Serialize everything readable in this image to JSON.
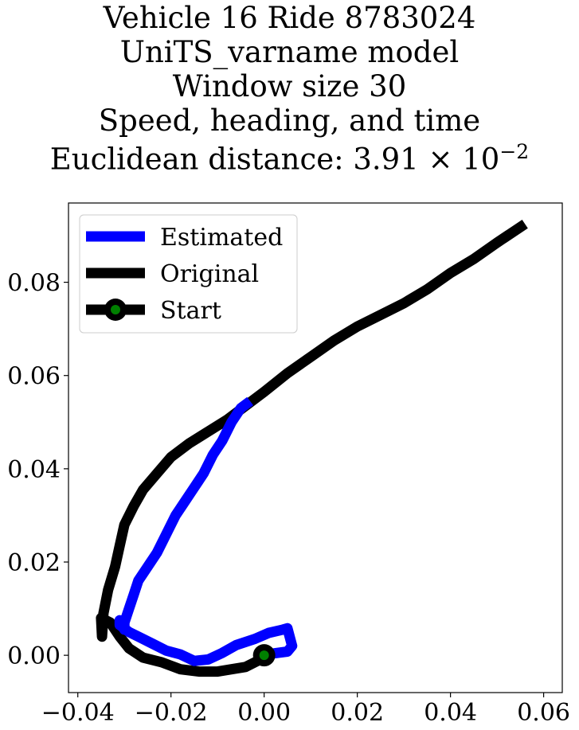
{
  "title_lines": [
    "Vehicle 16 Ride 8783024",
    "UniTS_varname model",
    "Window size 30",
    "Speed, heading, and time",
    "Euclidean distance: 3.91 × 10",
    "−2"
  ],
  "chart_data": {
    "type": "line",
    "title": "Vehicle 16 Ride 8783024\nUniTS_varname model\nWindow size 30\nSpeed, heading, and time\nEuclidean distance: 3.91 × 10^-2",
    "xlabel": "",
    "ylabel": "",
    "xlim": [
      -0.042,
      0.064
    ],
    "ylim": [
      -0.008,
      0.097
    ],
    "xticks": [
      -0.04,
      -0.02,
      0.0,
      0.02,
      0.04,
      0.06
    ],
    "xtick_labels": [
      "−0.04",
      "−0.02",
      "0.00",
      "0.02",
      "0.04",
      "0.06"
    ],
    "yticks": [
      0.0,
      0.02,
      0.04,
      0.06,
      0.08
    ],
    "ytick_labels": [
      "0.00",
      "0.02",
      "0.04",
      "0.06",
      "0.08"
    ],
    "grid": false,
    "legend_position": "upper-left",
    "series": [
      {
        "name": "Estimated",
        "color": "#0000ff",
        "x": [
          -0.003,
          -0.005,
          -0.007,
          -0.009,
          -0.011,
          -0.013,
          -0.015,
          -0.017,
          -0.019,
          -0.021,
          -0.023,
          -0.025,
          -0.027,
          -0.028,
          -0.029,
          -0.03,
          -0.03,
          -0.031,
          -0.031,
          -0.029,
          -0.027,
          -0.024,
          -0.021,
          -0.018,
          -0.015,
          -0.012,
          -0.009,
          -0.006,
          -0.002,
          0.001,
          0.004,
          0.005,
          0.006,
          0.005,
          0.002
        ],
        "y": [
          0.0545,
          0.053,
          0.05,
          0.046,
          0.043,
          0.039,
          0.036,
          0.033,
          0.03,
          0.026,
          0.022,
          0.019,
          0.016,
          0.013,
          0.01,
          0.007,
          0.0055,
          0.0075,
          0.0065,
          0.005,
          0.004,
          0.0025,
          0.001,
          0.0002,
          -0.0012,
          -0.0009,
          0.0005,
          0.0022,
          0.0035,
          0.0048,
          0.0055,
          0.0058,
          0.002,
          0.0008,
          0.0004
        ]
      },
      {
        "name": "Original",
        "color": "#000000",
        "x": [
          0.056,
          0.05,
          0.045,
          0.04,
          0.035,
          0.03,
          0.025,
          0.02,
          0.015,
          0.01,
          0.005,
          0.0,
          -0.004,
          -0.008,
          -0.012,
          -0.016,
          -0.02,
          -0.023,
          -0.026,
          -0.028,
          -0.03,
          -0.031,
          -0.032,
          -0.0335,
          -0.0345,
          -0.0348,
          -0.035,
          -0.033,
          -0.031,
          -0.029,
          -0.026,
          -0.022,
          -0.018,
          -0.014,
          -0.01,
          -0.007,
          -0.004,
          -0.001,
          0.0
        ],
        "y": [
          0.0925,
          0.0885,
          0.085,
          0.082,
          0.0785,
          0.0755,
          0.073,
          0.0705,
          0.0675,
          0.064,
          0.0605,
          0.0565,
          0.0535,
          0.0505,
          0.048,
          0.0455,
          0.0425,
          0.039,
          0.0355,
          0.032,
          0.028,
          0.0235,
          0.019,
          0.014,
          0.009,
          0.004,
          0.008,
          0.007,
          0.004,
          0.0015,
          -0.0005,
          -0.0015,
          -0.003,
          -0.0035,
          -0.0035,
          -0.003,
          -0.0025,
          -0.001,
          0.0
        ]
      }
    ],
    "start_point": {
      "name": "Start",
      "x": 0.0,
      "y": 0.0,
      "outer_color": "#000000",
      "inner_color": "#008000"
    }
  }
}
